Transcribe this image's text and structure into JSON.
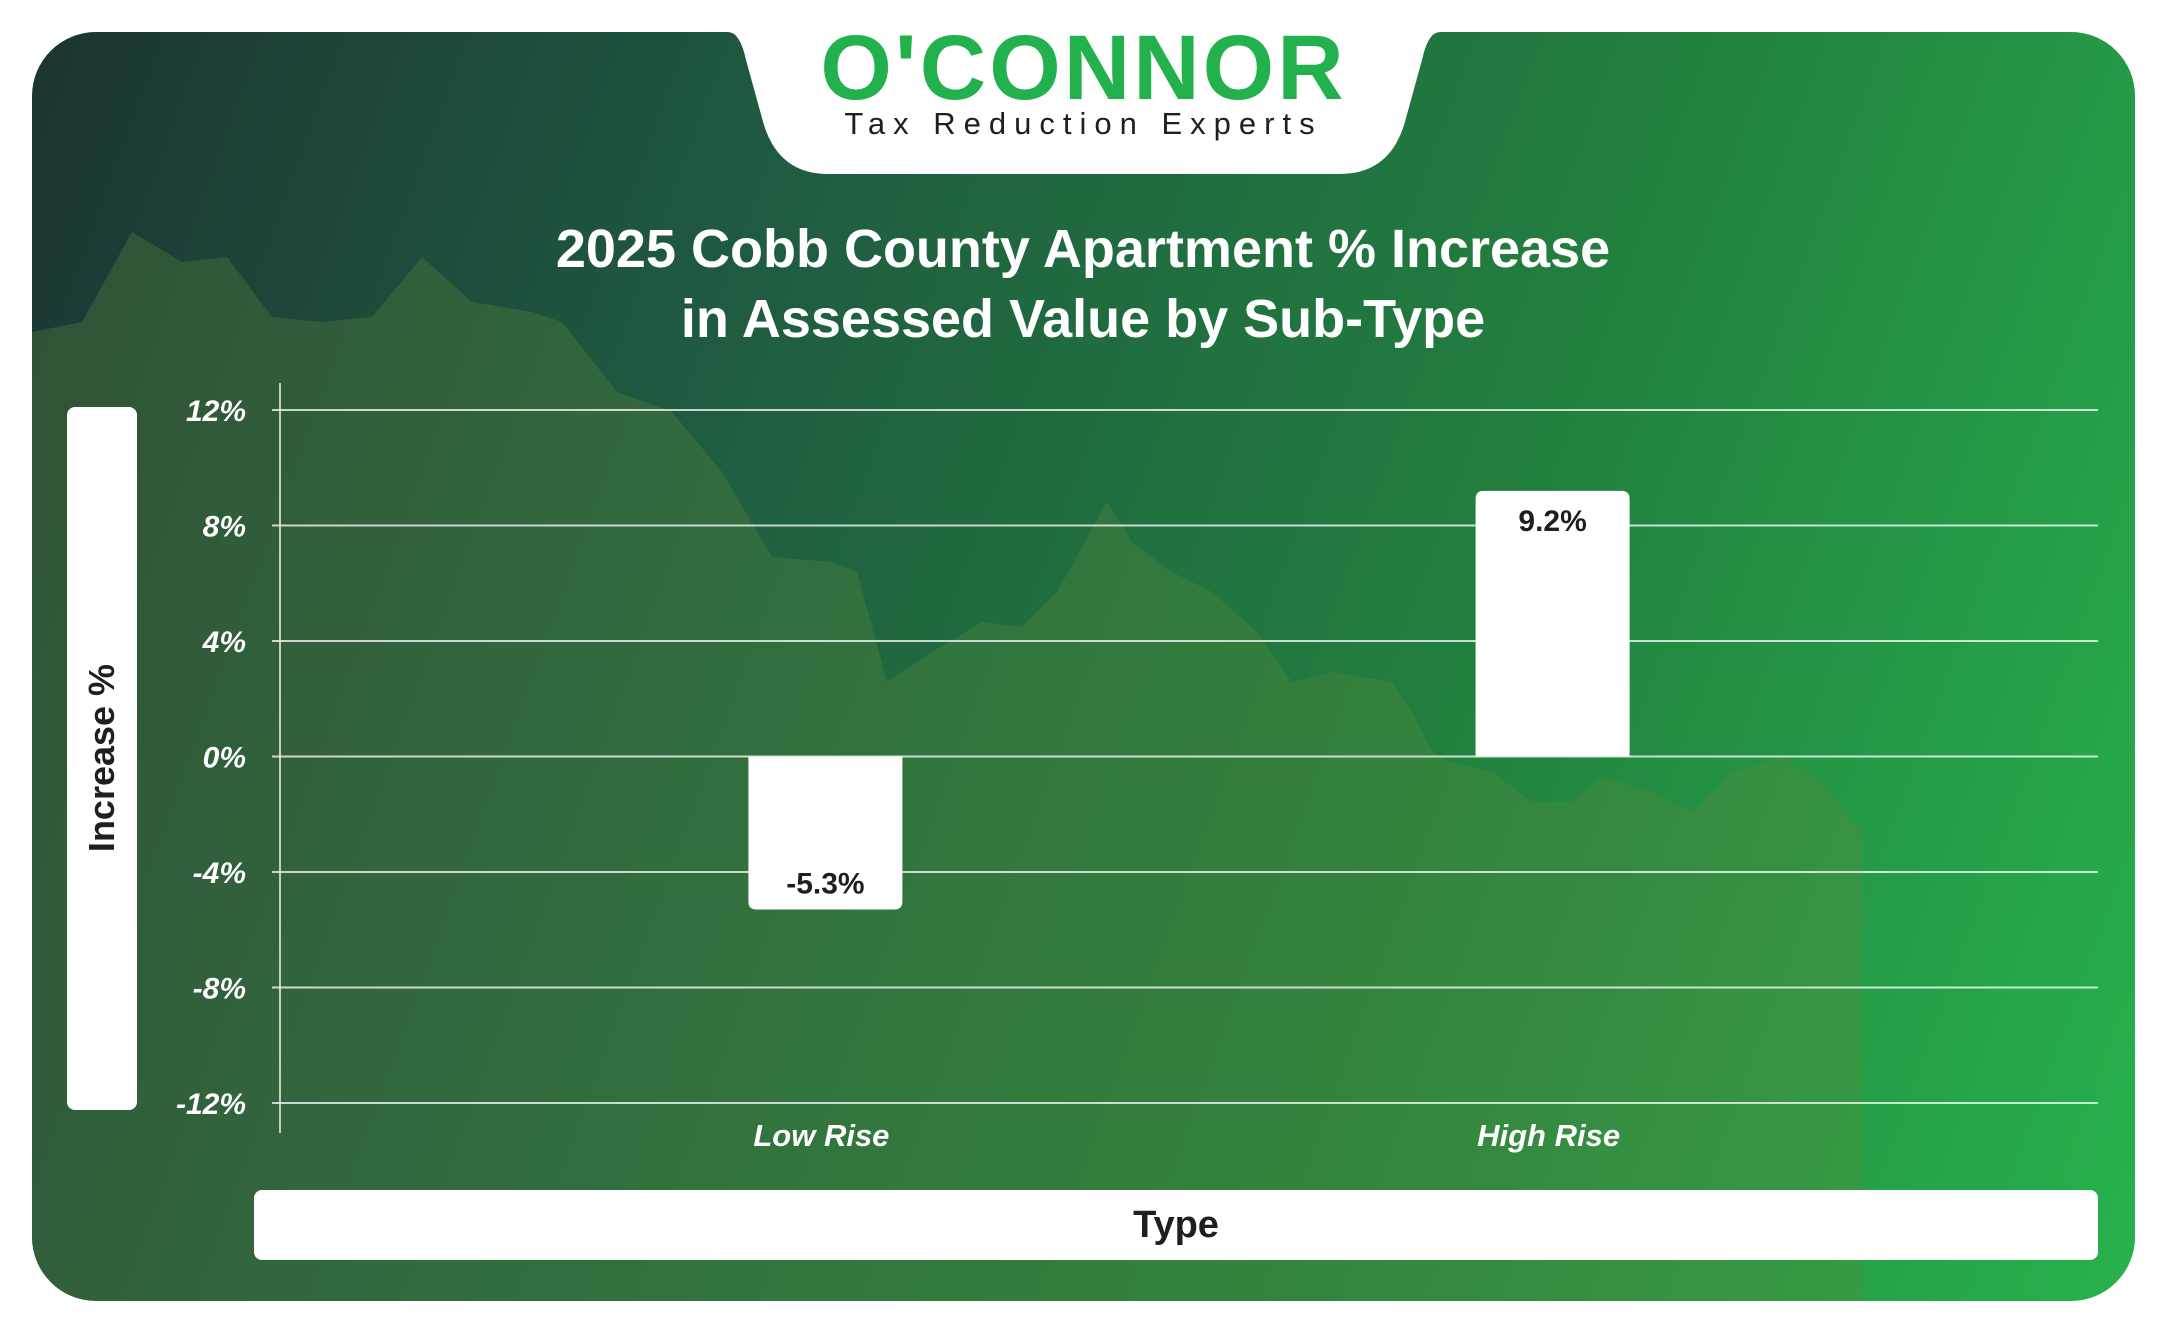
{
  "brand": {
    "logo": "O'CONNOR",
    "tagline": "Tax Reduction Experts",
    "color": "#22b14c"
  },
  "chart_data": {
    "type": "bar",
    "title_lines": [
      "2025 Cobb County Apartment % Increase",
      "in Assessed Value by Sub-Type"
    ],
    "xlabel": "Type",
    "ylabel": "Increase %",
    "categories": [
      "Low Rise",
      "High Rise"
    ],
    "values": [
      -5.3,
      9.2
    ],
    "data_labels": [
      "-5.3%",
      "9.2%"
    ],
    "ylim": [
      -12,
      12
    ],
    "yticks": [
      12,
      8,
      4,
      0,
      -4,
      -8,
      -12
    ],
    "ytick_labels": [
      "12%",
      "8%",
      "4%",
      "0%",
      "-4%",
      "-8%",
      "-12%"
    ],
    "grid": true,
    "bar_color": "#ffffff"
  }
}
